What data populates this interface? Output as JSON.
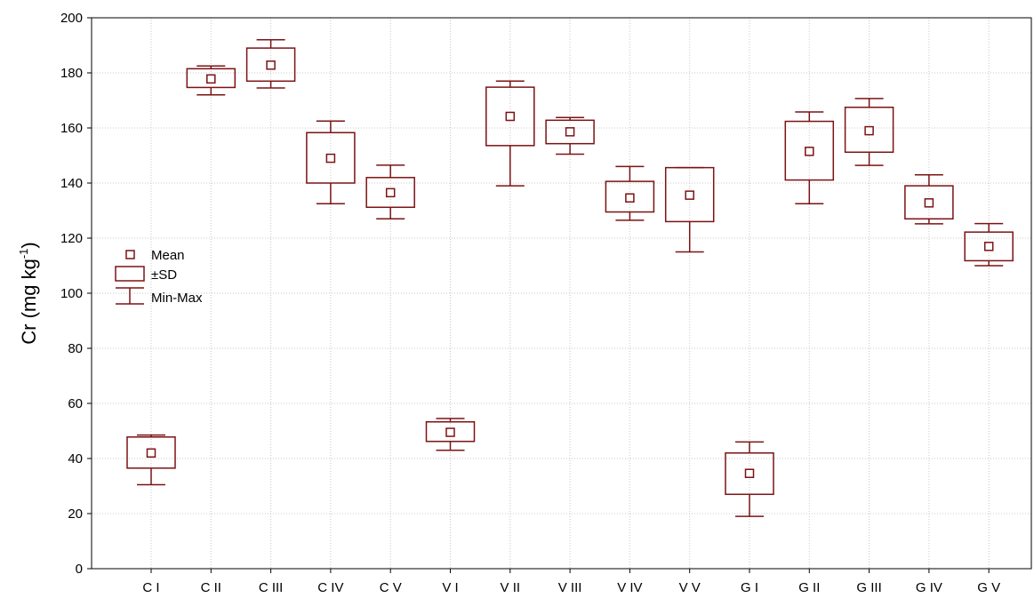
{
  "chart_data": {
    "type": "box",
    "ylabel": "Cr (mg kg-1)",
    "ylabel_main": "Cr (mg kg",
    "ylabel_sup": "-1",
    "ylabel_close": ")",
    "xlabel": "",
    "ylim": [
      0,
      200
    ],
    "yticks": [
      0,
      20,
      40,
      60,
      80,
      100,
      120,
      140,
      160,
      180,
      200
    ],
    "grid": true,
    "legend": {
      "placement": "left",
      "entries": [
        "Mean",
        "±SD",
        "Min-Max"
      ]
    },
    "color": "#7b1214",
    "categories": [
      "C I",
      "C II",
      "C III",
      "C IV",
      "C V",
      "V I",
      "V II",
      "V III",
      "V IV",
      "V V",
      "G I",
      "G II",
      "G III",
      "G IV",
      "G V"
    ],
    "series": [
      {
        "category": "C I",
        "min": 30.5,
        "sd_low": 36.5,
        "mean": 42,
        "sd_high": 47.8,
        "max": 48.5
      },
      {
        "category": "C II",
        "min": 172,
        "sd_low": 174.7,
        "mean": 177.8,
        "sd_high": 181.5,
        "max": 182.5
      },
      {
        "category": "C III",
        "min": 174.5,
        "sd_low": 177,
        "mean": 182.8,
        "sd_high": 189,
        "max": 192
      },
      {
        "category": "C IV",
        "min": 132.5,
        "sd_low": 140,
        "mean": 149,
        "sd_high": 158.3,
        "max": 162.5
      },
      {
        "category": "C V",
        "min": 127,
        "sd_low": 131.2,
        "mean": 136.5,
        "sd_high": 142,
        "max": 146.5
      },
      {
        "category": "V I",
        "min": 43,
        "sd_low": 46.2,
        "mean": 49.5,
        "sd_high": 53.3,
        "max": 54.5
      },
      {
        "category": "V II",
        "min": 139,
        "sd_low": 153.6,
        "mean": 164.2,
        "sd_high": 174.8,
        "max": 177
      },
      {
        "category": "V III",
        "min": 150.5,
        "sd_low": 154.3,
        "mean": 158.6,
        "sd_high": 162.8,
        "max": 163.8
      },
      {
        "category": "V IV",
        "min": 126.5,
        "sd_low": 129.5,
        "mean": 134.6,
        "sd_high": 140.6,
        "max": 146
      },
      {
        "category": "V V",
        "min": 115,
        "sd_low": 126,
        "mean": 135.6,
        "sd_high": 145.6,
        "max": 145.6
      },
      {
        "category": "G I",
        "min": 19,
        "sd_low": 27,
        "mean": 34.6,
        "sd_high": 42,
        "max": 46
      },
      {
        "category": "G II",
        "min": 132.5,
        "sd_low": 141.1,
        "mean": 151.5,
        "sd_high": 162.4,
        "max": 165.8
      },
      {
        "category": "G III",
        "min": 146.4,
        "sd_low": 151.2,
        "mean": 159,
        "sd_high": 167.5,
        "max": 170.7
      },
      {
        "category": "G IV",
        "min": 125.2,
        "sd_low": 127,
        "mean": 132.8,
        "sd_high": 139,
        "max": 143
      },
      {
        "category": "G V",
        "min": 110,
        "sd_low": 111.8,
        "mean": 117,
        "sd_high": 122.2,
        "max": 125.3
      }
    ]
  }
}
